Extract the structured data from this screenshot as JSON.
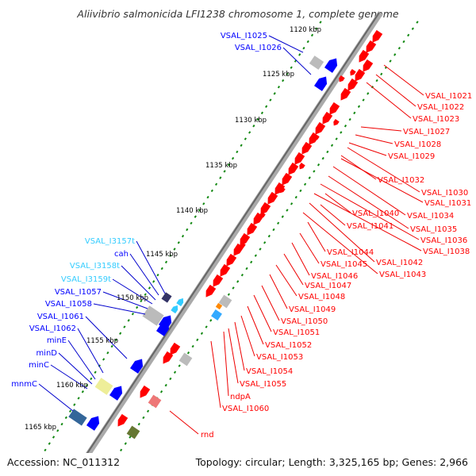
{
  "title": "Aliivibrio salmonicida LFI1238 chromosome 1, complete genome",
  "footer": {
    "accession": "Accession: NC_011312",
    "info": "Topology: circular; Length: 3,325,165 bp; Genes: 2,966"
  },
  "colors": {
    "forward_gene": "#0000ff",
    "reverse_gene": "#ff0000",
    "rna_label": "#33ccff",
    "tick_dot": "#118811",
    "backbone": "#888888",
    "leader_forward": "#0000cc",
    "leader_reverse": "#ee0000"
  },
  "kbp_ticks": [
    "1120 kbp",
    "1125 kbp",
    "1130 kbp",
    "1135 kbp",
    "1140 kbp",
    "1145 kbp",
    "1150 kbp",
    "1155 kbp",
    "1160 kbp",
    "1165 kbp"
  ],
  "left_labels": [
    {
      "text": "VSAL_I1025",
      "kind": "forward"
    },
    {
      "text": "VSAL_I1026",
      "kind": "forward"
    },
    {
      "text": "VSAL_I3157t",
      "kind": "rna"
    },
    {
      "text": "cah",
      "kind": "forward"
    },
    {
      "text": "VSAL_I3158t",
      "kind": "rna"
    },
    {
      "text": "VSAL_I3159t",
      "kind": "rna"
    },
    {
      "text": "VSAL_I1057",
      "kind": "forward"
    },
    {
      "text": "VSAL_I1058",
      "kind": "forward"
    },
    {
      "text": "VSAL_I1061",
      "kind": "forward"
    },
    {
      "text": "VSAL_I1062",
      "kind": "forward"
    },
    {
      "text": "minE",
      "kind": "forward"
    },
    {
      "text": "minD",
      "kind": "forward"
    },
    {
      "text": "minC",
      "kind": "forward"
    },
    {
      "text": "mnmC",
      "kind": "forward"
    }
  ],
  "right_labels": [
    {
      "text": "VSAL_I1021",
      "kind": "reverse"
    },
    {
      "text": "VSAL_I1022",
      "kind": "reverse"
    },
    {
      "text": "VSAL_I1023",
      "kind": "reverse"
    },
    {
      "text": "VSAL_I1027",
      "kind": "reverse"
    },
    {
      "text": "VSAL_I1028",
      "kind": "reverse"
    },
    {
      "text": "VSAL_I1029",
      "kind": "reverse"
    },
    {
      "text": "VSAL_I1032",
      "kind": "reverse"
    },
    {
      "text": "VSAL_I1030",
      "kind": "reverse"
    },
    {
      "text": "VSAL_I1031",
      "kind": "reverse"
    },
    {
      "text": "VSAL_I1040",
      "kind": "reverse"
    },
    {
      "text": "VSAL_I1034",
      "kind": "reverse"
    },
    {
      "text": "VSAL_I1041",
      "kind": "reverse"
    },
    {
      "text": "VSAL_I1035",
      "kind": "reverse"
    },
    {
      "text": "VSAL_I1036",
      "kind": "reverse"
    },
    {
      "text": "VSAL_I1044",
      "kind": "reverse"
    },
    {
      "text": "VSAL_I1038",
      "kind": "reverse"
    },
    {
      "text": "VSAL_I1045",
      "kind": "reverse"
    },
    {
      "text": "VSAL_I1042",
      "kind": "reverse"
    },
    {
      "text": "VSAL_I1046",
      "kind": "reverse"
    },
    {
      "text": "VSAL_I1043",
      "kind": "reverse"
    },
    {
      "text": "VSAL_I1047",
      "kind": "reverse"
    },
    {
      "text": "VSAL_I1048",
      "kind": "reverse"
    },
    {
      "text": "VSAL_I1049",
      "kind": "reverse"
    },
    {
      "text": "VSAL_I1050",
      "kind": "reverse"
    },
    {
      "text": "VSAL_I1051",
      "kind": "reverse"
    },
    {
      "text": "VSAL_I1052",
      "kind": "reverse"
    },
    {
      "text": "VSAL_I1053",
      "kind": "reverse"
    },
    {
      "text": "VSAL_I1054",
      "kind": "reverse"
    },
    {
      "text": "VSAL_I1055",
      "kind": "reverse"
    },
    {
      "text": "ndpA",
      "kind": "reverse"
    },
    {
      "text": "VSAL_I1060",
      "kind": "reverse"
    },
    {
      "text": "rnd",
      "kind": "reverse"
    }
  ]
}
